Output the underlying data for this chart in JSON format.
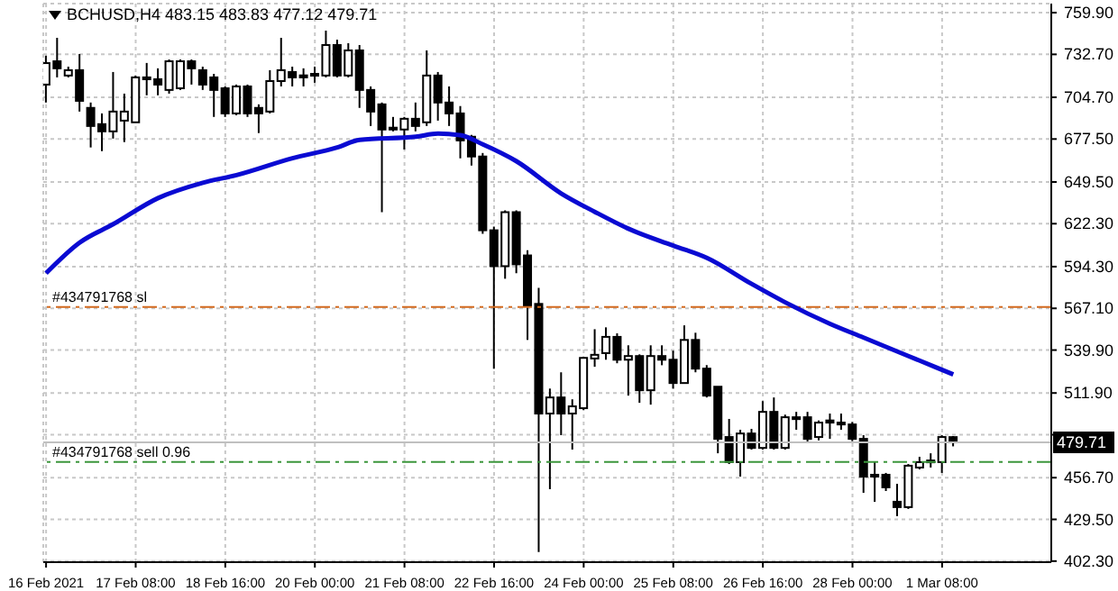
{
  "chart_data": {
    "type": "candlestick",
    "title": "BCHUSD,H4 483.15 483.83 477.12 479.71",
    "x": [
      "2021-02-16T00:00",
      "2021-02-16T04:00",
      "2021-02-16T08:00",
      "2021-02-16T12:00",
      "2021-02-16T16:00",
      "2021-02-16T20:00",
      "2021-02-17T00:00",
      "2021-02-17T04:00",
      "2021-02-17T08:00",
      "2021-02-17T12:00",
      "2021-02-17T16:00",
      "2021-02-17T20:00",
      "2021-02-18T00:00",
      "2021-02-18T04:00",
      "2021-02-18T08:00",
      "2021-02-18T12:00",
      "2021-02-18T16:00",
      "2021-02-18T20:00",
      "2021-02-19T00:00",
      "2021-02-19T04:00",
      "2021-02-19T08:00",
      "2021-02-19T12:00",
      "2021-02-19T16:00",
      "2021-02-19T20:00",
      "2021-02-20T00:00",
      "2021-02-20T04:00",
      "2021-02-20T08:00",
      "2021-02-20T12:00",
      "2021-02-20T16:00",
      "2021-02-20T20:00",
      "2021-02-21T00:00",
      "2021-02-21T04:00",
      "2021-02-21T08:00",
      "2021-02-21T12:00",
      "2021-02-21T16:00",
      "2021-02-21T20:00",
      "2021-02-22T00:00",
      "2021-02-22T04:00",
      "2021-02-22T08:00",
      "2021-02-22T12:00",
      "2021-02-22T16:00",
      "2021-02-22T20:00",
      "2021-02-23T00:00",
      "2021-02-23T04:00",
      "2021-02-23T08:00",
      "2021-02-23T12:00",
      "2021-02-23T16:00",
      "2021-02-23T20:00",
      "2021-02-24T00:00",
      "2021-02-24T04:00",
      "2021-02-24T08:00",
      "2021-02-24T12:00",
      "2021-02-24T16:00",
      "2021-02-24T20:00",
      "2021-02-25T00:00",
      "2021-02-25T04:00",
      "2021-02-25T08:00",
      "2021-02-25T12:00",
      "2021-02-25T16:00",
      "2021-02-25T20:00",
      "2021-02-26T00:00",
      "2021-02-26T04:00",
      "2021-02-26T08:00",
      "2021-02-26T12:00",
      "2021-02-26T16:00",
      "2021-02-26T20:00",
      "2021-02-27T00:00",
      "2021-02-27T04:00",
      "2021-02-27T08:00",
      "2021-02-27T12:00",
      "2021-02-27T16:00",
      "2021-02-27T20:00",
      "2021-02-28T00:00",
      "2021-02-28T04:00",
      "2021-02-28T08:00",
      "2021-02-28T12:00",
      "2021-02-28T16:00",
      "2021-02-28T20:00",
      "2021-03-01T00:00",
      "2021-03-01T04:00",
      "2021-03-01T08:00",
      "2021-03-01T12:00"
    ],
    "ohlc": [
      [
        713,
        731.8,
        701.3,
        727
      ],
      [
        728.2,
        743.5,
        717.7,
        723.6
      ],
      [
        718.9,
        724.7,
        717.7,
        722.4
      ],
      [
        722.4,
        732.9,
        695.4,
        702.4
      ],
      [
        697.8,
        701.3,
        672,
        686
      ],
      [
        687.2,
        694.2,
        669.6,
        682.5
      ],
      [
        682.5,
        721.2,
        677.8,
        695.4
      ],
      [
        689.5,
        707.1,
        675.5,
        695.4
      ],
      [
        688.4,
        718.9,
        688.4,
        717.7
      ],
      [
        716.5,
        727.1,
        706,
        717.7
      ],
      [
        716.5,
        723.6,
        706,
        713
      ],
      [
        709.5,
        729.4,
        707.1,
        728.2
      ],
      [
        710.6,
        729.4,
        709.5,
        728.2
      ],
      [
        728.2,
        729.4,
        713,
        723.6
      ],
      [
        722.4,
        724.7,
        709.5,
        713
      ],
      [
        717.7,
        720,
        691.9,
        709.5
      ],
      [
        710.6,
        711.8,
        691.9,
        694.2
      ],
      [
        694.2,
        713,
        693,
        711.8
      ],
      [
        711.8,
        713,
        691.9,
        694.2
      ],
      [
        697.8,
        700.1,
        681.4,
        694.2
      ],
      [
        695.4,
        722.4,
        694.2,
        715.3
      ],
      [
        715.3,
        743.5,
        711.8,
        722.4
      ],
      [
        721.2,
        724.7,
        711.8,
        717.7
      ],
      [
        719,
        723.6,
        711.8,
        717.7
      ],
      [
        718.9,
        724.7,
        714.2,
        720
      ],
      [
        718.9,
        748.2,
        717.7,
        738.8
      ],
      [
        738.8,
        742.3,
        717.7,
        718.9
      ],
      [
        718.9,
        740,
        717.7,
        735.3
      ],
      [
        735.3,
        738.8,
        697.8,
        709.5
      ],
      [
        709.5,
        711.8,
        686,
        695.4
      ],
      [
        700.1,
        701.3,
        629.8,
        683.7
      ],
      [
        684.9,
        691.9,
        682.5,
        683.7
      ],
      [
        683.7,
        691.9,
        670.7,
        690.7
      ],
      [
        690.7,
        701.3,
        682.5,
        686
      ],
      [
        688.4,
        735.3,
        686,
        718.9
      ],
      [
        718.9,
        721.2,
        689.5,
        701.3
      ],
      [
        701.3,
        711.8,
        686,
        694.2
      ],
      [
        694.2,
        699,
        664.9,
        676.6
      ],
      [
        679,
        680.2,
        660.2,
        666.1
      ],
      [
        666.1,
        668.4,
        615.7,
        618
      ],
      [
        618,
        620.4,
        527.7,
        594.6
      ],
      [
        594.6,
        631,
        586.4,
        629.8
      ],
      [
        629.8,
        631,
        590,
        595.8
      ],
      [
        601.6,
        605,
        546.5,
        568.8
      ],
      [
        570,
        580.5,
        408.2,
        498.5
      ],
      [
        498.5,
        514.8,
        449.2,
        509
      ],
      [
        509,
        525.4,
        484.4,
        498.5
      ],
      [
        498.5,
        507.8,
        475,
        503.2
      ],
      [
        502,
        535.6,
        500.8,
        534.8
      ],
      [
        534.4,
        553.5,
        529,
        536.8
      ],
      [
        537.9,
        554.7,
        533.6,
        548.5
      ],
      [
        548.5,
        550.8,
        531.3,
        533.6
      ],
      [
        533.6,
        543,
        510.2,
        536
      ],
      [
        536,
        537.1,
        505.5,
        513.7
      ],
      [
        513.7,
        543,
        504.3,
        536
      ],
      [
        536,
        543,
        530,
        533.6
      ],
      [
        533.6,
        539.5,
        514.8,
        518.4
      ],
      [
        518.4,
        556,
        518,
        546.5
      ],
      [
        546.5,
        551.2,
        525.4,
        527.8
      ],
      [
        527.8,
        530.1,
        509,
        510.2
      ],
      [
        516,
        516,
        472.6,
        482
      ],
      [
        483.2,
        495,
        465.6,
        466.8
      ],
      [
        466.8,
        487.9,
        457.4,
        485.5
      ],
      [
        485.5,
        488.5,
        475,
        476.1
      ],
      [
        476.1,
        506.6,
        475,
        499.6
      ],
      [
        499.6,
        509,
        475,
        476.1
      ],
      [
        476.1,
        497.8,
        475,
        496.1
      ],
      [
        496.1,
        499.6,
        487.9,
        494.9
      ],
      [
        496.1,
        499.6,
        479.7,
        482
      ],
      [
        483.2,
        494,
        481,
        492.6
      ],
      [
        494,
        498.5,
        482,
        492.6
      ],
      [
        492.6,
        498.5,
        487.9,
        491.4
      ],
      [
        491.4,
        493,
        480.5,
        482
      ],
      [
        482,
        484.4,
        446.8,
        457.4
      ],
      [
        458.6,
        466.8,
        440.9,
        457.4
      ],
      [
        458.6,
        459.8,
        448,
        450.4
      ],
      [
        441,
        452.7,
        431.6,
        437.5
      ],
      [
        437.5,
        465.6,
        436.3,
        464.5
      ],
      [
        463.3,
        470.3,
        462.1,
        466.8
      ],
      [
        466.8,
        472.6,
        463.3,
        467.9
      ],
      [
        466.8,
        484.4,
        459.8,
        483.2
      ],
      [
        483.15,
        483.83,
        477.12,
        479.71
      ]
    ],
    "series": [
      {
        "type": "line",
        "color": "#0a0ad2",
        "x": [
          "2021-02-16T00:00",
          "2021-02-16T12:00",
          "2021-02-17T00:00",
          "2021-02-17T16:00",
          "2021-02-18T08:00",
          "2021-02-18T20:00",
          "2021-02-19T16:00",
          "2021-02-20T08:00",
          "2021-02-20T16:00",
          "2021-02-21T12:00",
          "2021-02-21T20:00",
          "2021-02-22T04:00",
          "2021-02-22T12:00",
          "2021-02-23T00:00",
          "2021-02-23T16:00",
          "2021-02-24T04:00",
          "2021-02-24T16:00",
          "2021-02-25T08:00",
          "2021-02-25T20:00",
          "2021-02-26T12:00",
          "2021-02-27T00:00",
          "2021-02-27T16:00",
          "2021-02-28T04:00",
          "2021-02-28T20:00",
          "2021-03-01T12:00"
        ],
        "values": [
          590,
          610,
          622,
          639,
          649,
          654,
          665,
          672,
          677,
          679,
          681,
          680,
          674,
          663,
          642,
          630,
          619,
          608,
          600,
          583,
          571,
          557,
          548,
          536,
          524
        ]
      }
    ],
    "xlim": [
      "2021-02-15T23:00",
      "2021-03-02T23:00"
    ],
    "xticks": [
      {
        "value": "2021-02-16T00:00",
        "label": "16 Feb 2021"
      },
      {
        "value": "2021-02-17T08:00",
        "label": "17 Feb 08:00"
      },
      {
        "value": "2021-02-18T16:00",
        "label": "18 Feb 16:00"
      },
      {
        "value": "2021-02-20T00:00",
        "label": "20 Feb 00:00"
      },
      {
        "value": "2021-02-21T08:00",
        "label": "21 Feb 08:00"
      },
      {
        "value": "2021-02-22T16:00",
        "label": "22 Feb 16:00"
      },
      {
        "value": "2021-02-24T00:00",
        "label": "24 Feb 00:00"
      },
      {
        "value": "2021-02-25T08:00",
        "label": "25 Feb 08:00"
      },
      {
        "value": "2021-02-26T16:00",
        "label": "26 Feb 16:00"
      },
      {
        "value": "2021-02-28T00:00",
        "label": "28 Feb 00:00"
      },
      {
        "value": "2021-03-01T08:00",
        "label": "1 Mar 08:00"
      }
    ],
    "ylim": [
      401.6,
      765.8
    ],
    "yticks": [
      {
        "value": 759.9,
        "label": "759.90"
      },
      {
        "value": 732.7,
        "label": "732.70"
      },
      {
        "value": 704.7,
        "label": "704.70"
      },
      {
        "value": 677.5,
        "label": "677.50"
      },
      {
        "value": 649.5,
        "label": "649.50"
      },
      {
        "value": 622.3,
        "label": "622.30"
      },
      {
        "value": 594.3,
        "label": "594.30"
      },
      {
        "value": 567.1,
        "label": "567.10"
      },
      {
        "value": 539.9,
        "label": "539.90"
      },
      {
        "value": 511.9,
        "label": "511.90"
      },
      {
        "value": 484.7,
        "label": null
      },
      {
        "value": 456.7,
        "label": "456.70"
      },
      {
        "value": 429.5,
        "label": "429.50"
      },
      {
        "value": 402.3,
        "label": "402.30"
      }
    ],
    "grid": true,
    "ref_lines": [
      {
        "axis": "y",
        "value": 568,
        "label": "#434791768 sl",
        "color": "#d2691e",
        "line_style": "dashed"
      },
      {
        "axis": "y",
        "value": 467,
        "label": "#434791768 sell 0.96",
        "color": "#3c963c",
        "line_style": "dashed"
      },
      {
        "axis": "y",
        "value": 479.71,
        "label": "479.71",
        "color": "#c0c0c0",
        "line_style": "solid"
      }
    ]
  }
}
